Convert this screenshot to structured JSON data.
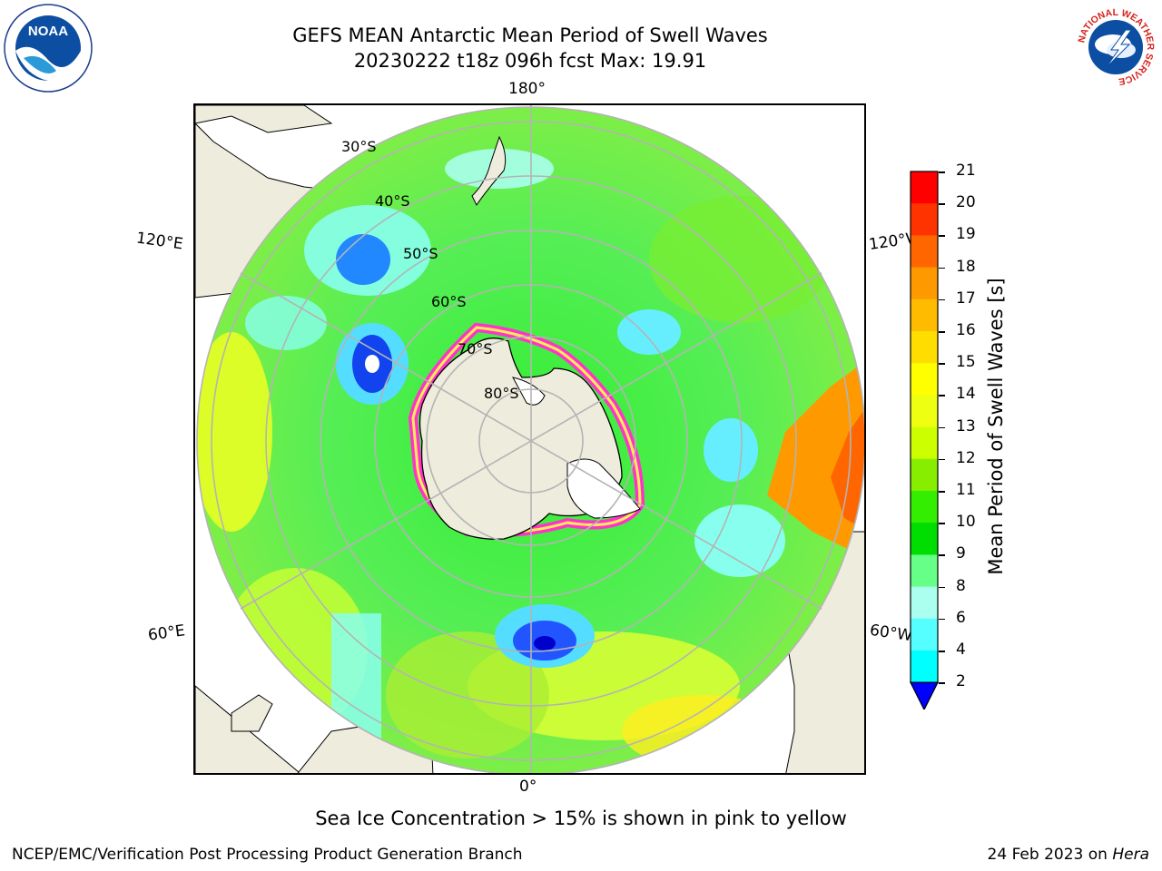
{
  "title_line1": "GEFS MEAN Antarctic Mean Period of Swell Waves",
  "title_line2": "20230222 t18z 096h fcst   Max: 19.91",
  "logos": {
    "left": "noaa-logo",
    "right": "national-weather-service-logo",
    "left_text": "NOAA",
    "right_text": "NATIONAL WEATHER SERVICE"
  },
  "map": {
    "lon_labels": {
      "top": "180°",
      "bottom": "0°",
      "upper_left": "120°E",
      "upper_right": "120°W",
      "lower_left": "60°E",
      "lower_right": "60°W"
    },
    "lat_labels": [
      "30°S",
      "40°S",
      "50°S",
      "60°S",
      "70°S",
      "80°S"
    ],
    "colors": {
      "land": "#eeecdc",
      "ocean_typical": "#55ee55",
      "sea_ice_edge": "#ff33cc"
    }
  },
  "colorbar": {
    "title": "Mean Period of Swell Waves [s]",
    "ticks": [
      "21",
      "20",
      "19",
      "18",
      "17",
      "16",
      "15",
      "14",
      "13",
      "12",
      "11",
      "10",
      "9",
      "8",
      "6",
      "4",
      "2"
    ],
    "colors": [
      "#ff0000",
      "#ff3300",
      "#ff6600",
      "#ff9900",
      "#ffbb00",
      "#ffdd00",
      "#ffff00",
      "#eeff11",
      "#ccff00",
      "#88ee00",
      "#33ee00",
      "#00dd00",
      "#66ff88",
      "#aaffee",
      "#55ffff",
      "#00ffff",
      "#00ccff",
      "#0077ff"
    ],
    "under_color": "#0000ff"
  },
  "note": "Sea Ice Concentration > 15% is shown in pink to yellow",
  "footer_left": "NCEP/EMC/Verification Post Processing Product Generation Branch",
  "footer_date": "24 Feb 2023 on ",
  "footer_machine": "Hera"
}
